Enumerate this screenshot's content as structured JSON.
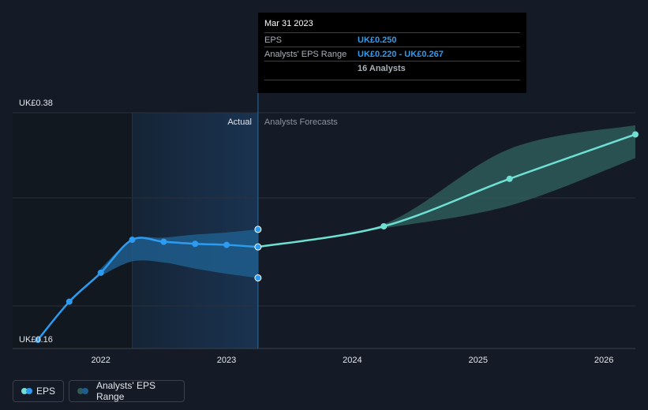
{
  "chart_data": {
    "type": "line",
    "y_axis": {
      "top_label": "UK£0.38",
      "bottom_label": "UK£0.16",
      "ylim": [
        0.16,
        0.38
      ]
    },
    "x_ticks": [
      "2022",
      "2023",
      "2024",
      "2025",
      "2026"
    ],
    "divider": {
      "actual_label": "Actual",
      "forecast_label": "Analysts Forecasts"
    },
    "eps_actual": [
      {
        "x": 2021.5,
        "y": 0.16
      },
      {
        "x": 2021.75,
        "y": 0.197
      },
      {
        "x": 2022.0,
        "y": 0.225
      },
      {
        "x": 2022.25,
        "y": 0.257
      },
      {
        "x": 2022.5,
        "y": 0.255
      },
      {
        "x": 2022.75,
        "y": 0.253
      },
      {
        "x": 2023.0,
        "y": 0.252
      },
      {
        "x": 2023.25,
        "y": 0.25
      }
    ],
    "eps_range_actual": [
      {
        "x": 2022.0,
        "low": 0.222,
        "high": 0.229
      },
      {
        "x": 2022.25,
        "low": 0.236,
        "high": 0.257
      },
      {
        "x": 2022.5,
        "low": 0.235,
        "high": 0.259
      },
      {
        "x": 2022.75,
        "low": 0.229,
        "high": 0.262
      },
      {
        "x": 2023.0,
        "low": 0.224,
        "high": 0.264
      },
      {
        "x": 2023.25,
        "low": 0.22,
        "high": 0.267
      }
    ],
    "eps_forecast": [
      {
        "x": 2023.25,
        "y": 0.25
      },
      {
        "x": 2024.25,
        "y": 0.27
      },
      {
        "x": 2025.25,
        "y": 0.316
      },
      {
        "x": 2026.25,
        "y": 0.359
      }
    ],
    "eps_range_forecast": [
      {
        "x": 2023.25,
        "low": 0.25,
        "high": 0.25
      },
      {
        "x": 2024.25,
        "low": 0.268,
        "high": 0.272
      },
      {
        "x": 2025.25,
        "low": 0.29,
        "high": 0.345
      },
      {
        "x": 2026.25,
        "low": 0.336,
        "high": 0.368
      }
    ]
  },
  "tooltip": {
    "date": "Mar 31 2023",
    "eps_label": "EPS",
    "eps_value": "UK£0.250",
    "range_label": "Analysts' EPS Range",
    "range_value": "UK£0.220 - UK£0.267",
    "analysts": "16 Analysts"
  },
  "legend": {
    "eps_label": "EPS",
    "range_label": "Analysts' EPS Range"
  },
  "colors": {
    "background": "#151b26",
    "eps_actual": "#2d9cf0",
    "eps_forecast": "#6ee0d3",
    "range_actual": "#1f5d8c",
    "range_forecast": "#2e5a5a",
    "grid": "#2b313c",
    "text": "#e4e6ea",
    "muted": "#8d939c"
  }
}
